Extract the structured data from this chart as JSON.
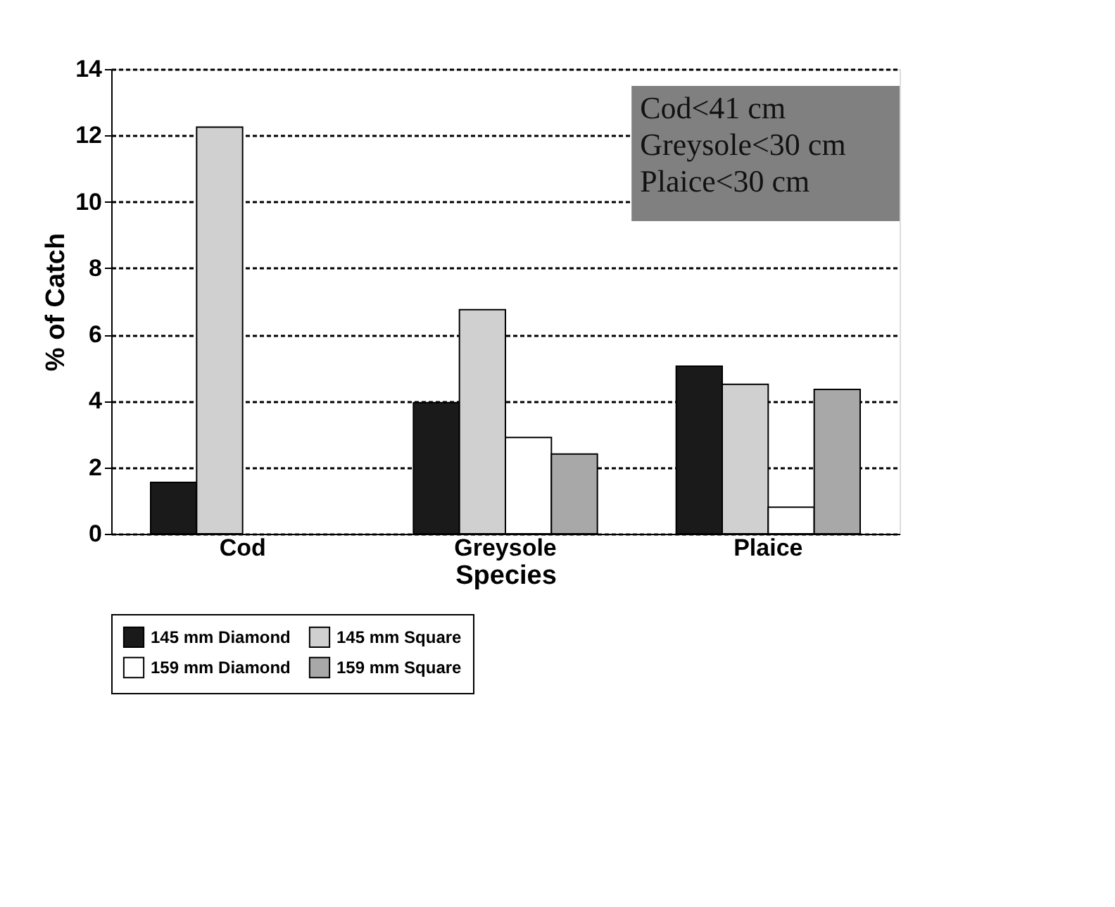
{
  "chart_data": {
    "type": "bar",
    "xlabel": "Species",
    "ylabel": "% of Catch",
    "categories": [
      "Cod",
      "Greysole",
      "Plaice"
    ],
    "series": [
      {
        "name": "145 mm Diamond",
        "color": "#1a1a1a",
        "values": [
          1.55,
          3.95,
          5.05
        ]
      },
      {
        "name": "145 mm Square",
        "color": "#d0d0d0",
        "values": [
          12.25,
          6.75,
          4.5
        ]
      },
      {
        "name": "159 mm Diamond",
        "color": "#ffffff",
        "values": [
          null,
          2.9,
          0.8
        ]
      },
      {
        "name": "159 mm Square",
        "color": "#a8a8a8",
        "values": [
          null,
          2.4,
          4.35
        ]
      }
    ],
    "ylim": [
      0,
      14
    ],
    "yticks": [
      0,
      2,
      4,
      6,
      8,
      10,
      12,
      14
    ],
    "grid": "y",
    "legend": "bottom",
    "annotations": [
      "Cod<41 cm",
      "Greysole<30 cm",
      "Plaice<30 cm"
    ]
  }
}
